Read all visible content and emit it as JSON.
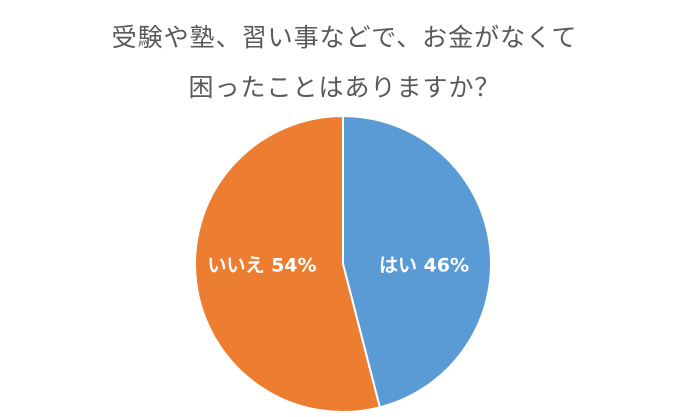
{
  "chart_data": {
    "type": "pie",
    "title_lines": [
      "受験や塾、習い事などで、お金がなくて",
      "困ったことはありますか？"
    ],
    "slices": [
      {
        "label": "はい",
        "value": 46,
        "display": "はい 46%",
        "color": "#5b9bd5"
      },
      {
        "label": "いいえ",
        "value": 54,
        "display": "いいえ 54%",
        "color": "#ed7d31"
      }
    ],
    "start_angle": "12 o'clock",
    "direction": "clockwise"
  }
}
